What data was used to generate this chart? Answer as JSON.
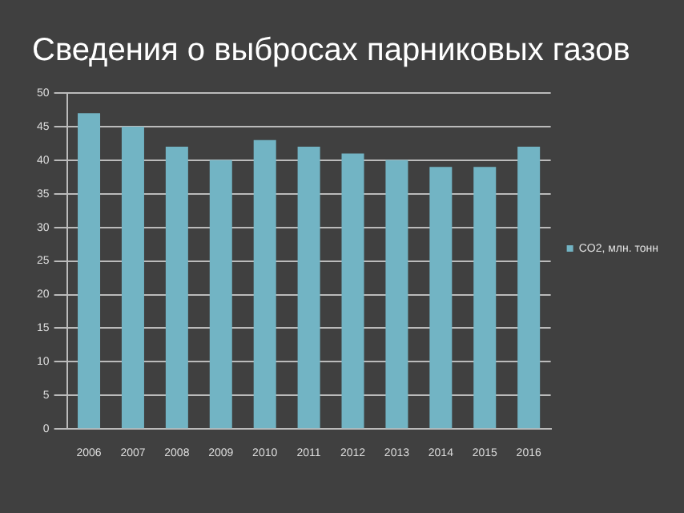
{
  "chart_data": {
    "type": "bar",
    "title": "Сведения о выбросах парниковых газов",
    "categories": [
      "2006",
      "2007",
      "2008",
      "2009",
      "2010",
      "2011",
      "2012",
      "2013",
      "2014",
      "2015",
      "2016"
    ],
    "series": [
      {
        "name": "CO2, млн. тонн",
        "color": "#72b4c4",
        "values": [
          47,
          45,
          42,
          40,
          43,
          42,
          41,
          40,
          39,
          39,
          42
        ]
      }
    ],
    "ylim": [
      0,
      50
    ],
    "yticks": [
      0,
      5,
      10,
      15,
      20,
      25,
      30,
      35,
      40,
      45,
      50
    ],
    "grid": "y",
    "legend": "right"
  }
}
